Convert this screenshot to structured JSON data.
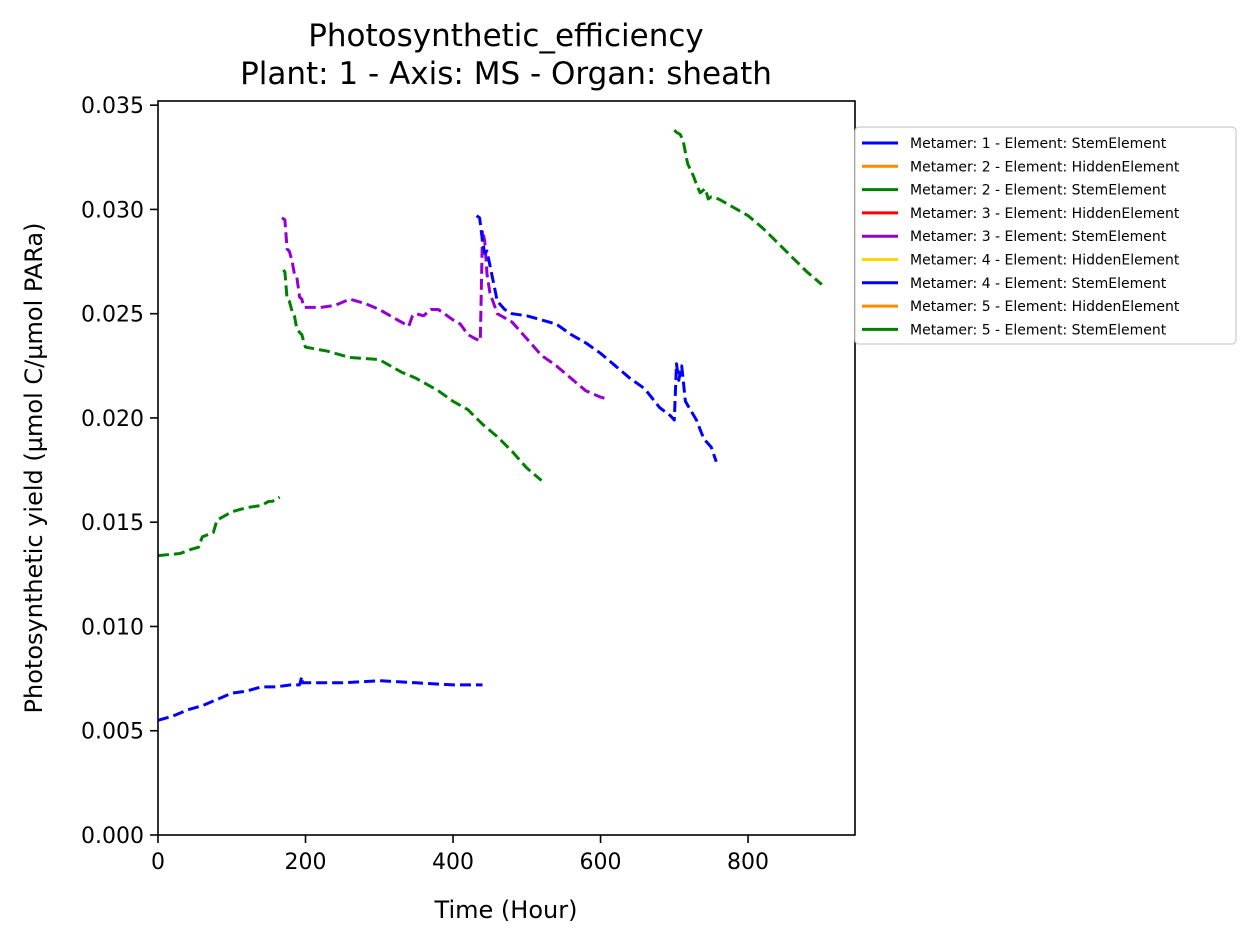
{
  "chart_data": {
    "type": "line",
    "title": "Photosynthetic_efficiency",
    "subtitle": "Plant: 1 - Axis: MS - Organ: sheath",
    "xlabel": "Time (Hour)",
    "ylabel": "Photosynthetic yield (µmol C/µmol PARa)",
    "xlim": [
      0,
      945
    ],
    "ylim": [
      0,
      0.0352
    ],
    "xticks": [
      0,
      200,
      400,
      600,
      800
    ],
    "xtick_labels": [
      "0",
      "200",
      "400",
      "600",
      "800"
    ],
    "yticks": [
      0,
      0.005,
      0.01,
      0.015,
      0.02,
      0.025,
      0.03,
      0.035
    ],
    "ytick_labels": [
      "0.000",
      "0.005",
      "0.010",
      "0.015",
      "0.020",
      "0.025",
      "0.030",
      "0.035"
    ],
    "legend_position": "outside-upper-right",
    "series": [
      {
        "name": "Metamer: 1 - Element: StemElement",
        "color": "#0000ff",
        "x": [
          0,
          20,
          40,
          60,
          80,
          100,
          120,
          140,
          160,
          180,
          192,
          195,
          196,
          200,
          250,
          300,
          350,
          400,
          420,
          440
        ],
        "y": [
          0.0055,
          0.0057,
          0.006,
          0.0062,
          0.0065,
          0.0068,
          0.0069,
          0.0071,
          0.0071,
          0.0072,
          0.0072,
          0.0076,
          0.0073,
          0.0073,
          0.0073,
          0.0074,
          0.0073,
          0.0072,
          0.0072,
          0.0072
        ]
      },
      {
        "name": "Metamer: 2 - Element: HiddenElement",
        "color": "#ff8c00",
        "x": [],
        "y": []
      },
      {
        "name": "Metamer: 2 - Element: StemElement",
        "color": "#008000",
        "x": [
          0,
          30,
          45,
          55,
          60,
          75,
          80,
          100,
          120,
          140,
          150,
          155,
          160,
          165
        ],
        "y": [
          0.0134,
          0.0135,
          0.0137,
          0.0138,
          0.0143,
          0.0145,
          0.0151,
          0.0155,
          0.0157,
          0.0158,
          0.016,
          0.016,
          0.0161,
          0.0162
        ]
      },
      {
        "name": "Metamer: 3 - Element: HiddenElement",
        "color": "#ff0000",
        "x": [],
        "y": []
      },
      {
        "name": "Metamer: 3 - Element: StemElement",
        "color": "#9400d3",
        "x": [
          168,
          172,
          175,
          178,
          182,
          185,
          188,
          192,
          195,
          198,
          200,
          220,
          240,
          260,
          280,
          300,
          320,
          340,
          345,
          350,
          360,
          370,
          380,
          400,
          410,
          420,
          430,
          437,
          440,
          443,
          446,
          450,
          460,
          480,
          500,
          520,
          540,
          560,
          580,
          600,
          610
        ],
        "y": [
          0.0296,
          0.0295,
          0.0281,
          0.028,
          0.0275,
          0.0269,
          0.0268,
          0.0258,
          0.0257,
          0.0253,
          0.0253,
          0.0253,
          0.0254,
          0.0257,
          0.0255,
          0.0252,
          0.0248,
          0.0244,
          0.0249,
          0.025,
          0.0249,
          0.0252,
          0.0252,
          0.0247,
          0.0245,
          0.024,
          0.0238,
          0.0237,
          0.029,
          0.0285,
          0.0269,
          0.026,
          0.025,
          0.0246,
          0.0238,
          0.023,
          0.0225,
          0.0219,
          0.0213,
          0.021,
          0.0209
        ]
      },
      {
        "name": "Metamer: 4 - Element: HiddenElement",
        "color": "#ffd700",
        "x": [],
        "y": []
      },
      {
        "name": "Metamer: 4 - Element: StemElement",
        "color": "#0000ff",
        "x": [
          432,
          436,
          440,
          443,
          446,
          460,
          470,
          480,
          500,
          520,
          540,
          560,
          580,
          600,
          620,
          640,
          660,
          680,
          695,
          700,
          703,
          706,
          710,
          715,
          720,
          730,
          740,
          750,
          757
        ],
        "y": [
          0.0297,
          0.0296,
          0.0285,
          0.0279,
          0.028,
          0.0256,
          0.0252,
          0.025,
          0.0249,
          0.0247,
          0.0245,
          0.024,
          0.0236,
          0.0231,
          0.0225,
          0.0219,
          0.0214,
          0.0205,
          0.0201,
          0.0199,
          0.0226,
          0.0218,
          0.0225,
          0.0208,
          0.0205,
          0.0199,
          0.019,
          0.0186,
          0.0179
        ]
      },
      {
        "name": "Metamer: 5 - Element: HiddenElement",
        "color": "#ff8c00",
        "x": [],
        "y": []
      },
      {
        "name": "Metamer: 5 - Element: StemElement",
        "color": "#008000",
        "x": [
          170,
          172,
          175,
          178,
          182,
          185,
          188,
          192,
          195,
          198,
          200,
          230,
          260,
          300,
          330,
          350,
          380,
          400,
          420,
          440,
          460,
          480,
          500,
          520
        ],
        "y": [
          0.0271,
          0.027,
          0.0257,
          0.0256,
          0.0251,
          0.0249,
          0.0243,
          0.0241,
          0.024,
          0.0236,
          0.0234,
          0.0232,
          0.0229,
          0.0228,
          0.0222,
          0.0219,
          0.0213,
          0.0208,
          0.0204,
          0.0197,
          0.0191,
          0.0184,
          0.0176,
          0.017
        ]
      },
      {
        "name": "Metamer: 5 - Element: StemElement",
        "color": "#008000",
        "show_in_legend": false,
        "x": [
          700,
          703,
          708,
          712,
          718,
          722,
          726,
          730,
          735,
          742,
          746,
          750,
          760,
          780,
          800,
          820,
          840,
          860,
          880,
          900
        ],
        "y": [
          0.0338,
          0.0337,
          0.0336,
          0.0333,
          0.0322,
          0.0319,
          0.0316,
          0.0312,
          0.0308,
          0.031,
          0.0305,
          0.0306,
          0.0305,
          0.0301,
          0.0297,
          0.0291,
          0.0284,
          0.0277,
          0.027,
          0.0264
        ]
      }
    ]
  }
}
